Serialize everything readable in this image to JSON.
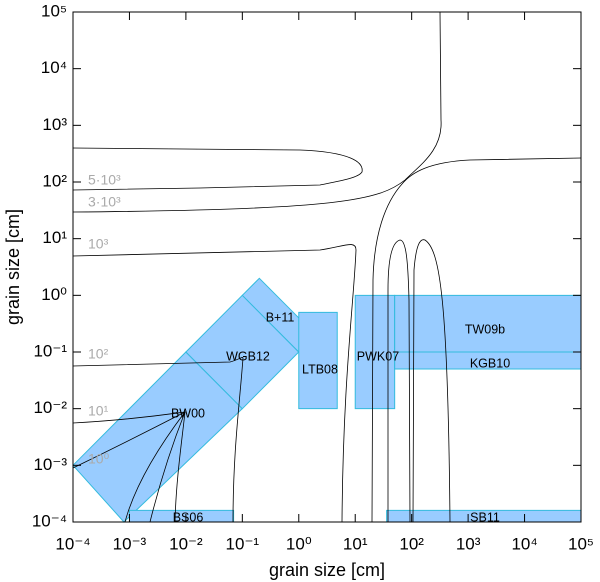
{
  "chart_data": {
    "type": "region",
    "x_label": "grain size [cm]",
    "y_label": "grain size [cm]",
    "log_x": true,
    "log_y": true,
    "xlim": [
      0.0001,
      100000
    ],
    "ylim": [
      0.0001,
      100000
    ],
    "xticks": [
      {
        "value": 0.0001,
        "label": "10⁻⁴"
      },
      {
        "value": 0.001,
        "label": "10⁻³"
      },
      {
        "value": 0.01,
        "label": "10⁻²"
      },
      {
        "value": 0.1,
        "label": "10⁻¹"
      },
      {
        "value": 1,
        "label": "10⁰"
      },
      {
        "value": 10,
        "label": "10¹"
      },
      {
        "value": 100,
        "label": "10²"
      },
      {
        "value": 1000,
        "label": "10³"
      },
      {
        "value": 10000,
        "label": "10⁴"
      },
      {
        "value": 100000,
        "label": "10⁵"
      }
    ],
    "yticks": [
      {
        "value": 0.0001,
        "label": "10⁻⁴"
      },
      {
        "value": 0.001,
        "label": "10⁻³"
      },
      {
        "value": 0.01,
        "label": "10⁻²"
      },
      {
        "value": 0.1,
        "label": "10⁻¹"
      },
      {
        "value": 1,
        "label": "10⁰"
      },
      {
        "value": 10,
        "label": "10¹"
      },
      {
        "value": 100,
        "label": "10²"
      },
      {
        "value": 1000,
        "label": "10³"
      },
      {
        "value": 10000,
        "label": "10⁴"
      },
      {
        "value": 100000,
        "label": "10⁵"
      }
    ],
    "region_color": "#99ccff",
    "region_edge": "#33bbdd",
    "regions": [
      {
        "name": "BW00",
        "x": [
          0.0001,
          0.0008,
          0.1,
          0.01
        ],
        "y": [
          0.001,
          0.0001,
          0.01,
          0.1
        ]
      },
      {
        "name": "WGB12",
        "x": [
          0.01,
          0.1,
          1,
          0.1
        ],
        "y": [
          0.1,
          0.01,
          0.1,
          1
        ]
      },
      {
        "name": "B+11",
        "x": [
          0.1,
          1,
          2,
          0.2
        ],
        "y": [
          1,
          0.1,
          0.2,
          2
        ]
      },
      {
        "name": "LTB08",
        "x": [
          1,
          4.8,
          4.8,
          1
        ],
        "y": [
          0.01,
          0.01,
          0.5,
          0.5
        ]
      },
      {
        "name": "PWK07",
        "x": [
          10,
          50,
          50,
          10
        ],
        "y": [
          0.01,
          0.01,
          1,
          1
        ]
      },
      {
        "name": "TW09b",
        "x": [
          50,
          100000,
          100000,
          50
        ],
        "y": [
          0.1,
          0.1,
          1,
          1
        ]
      },
      {
        "name": "KGB10",
        "x": [
          50,
          100000,
          100000,
          50
        ],
        "y": [
          0.05,
          0.05,
          0.1,
          0.1
        ]
      },
      {
        "name": "BS06",
        "x": [
          0.001,
          0.07,
          0.07,
          0.001
        ],
        "y": [
          0.0001,
          0.0001,
          0.00016,
          0.00016
        ]
      },
      {
        "name": "SB11",
        "x": [
          36,
          100000,
          100000,
          36
        ],
        "y": [
          0.0001,
          0.0001,
          0.00016,
          0.00016
        ]
      }
    ],
    "contour_labels": [
      "5·10³",
      "3·10³",
      "10³",
      "10²",
      "10¹",
      "10⁰"
    ]
  }
}
